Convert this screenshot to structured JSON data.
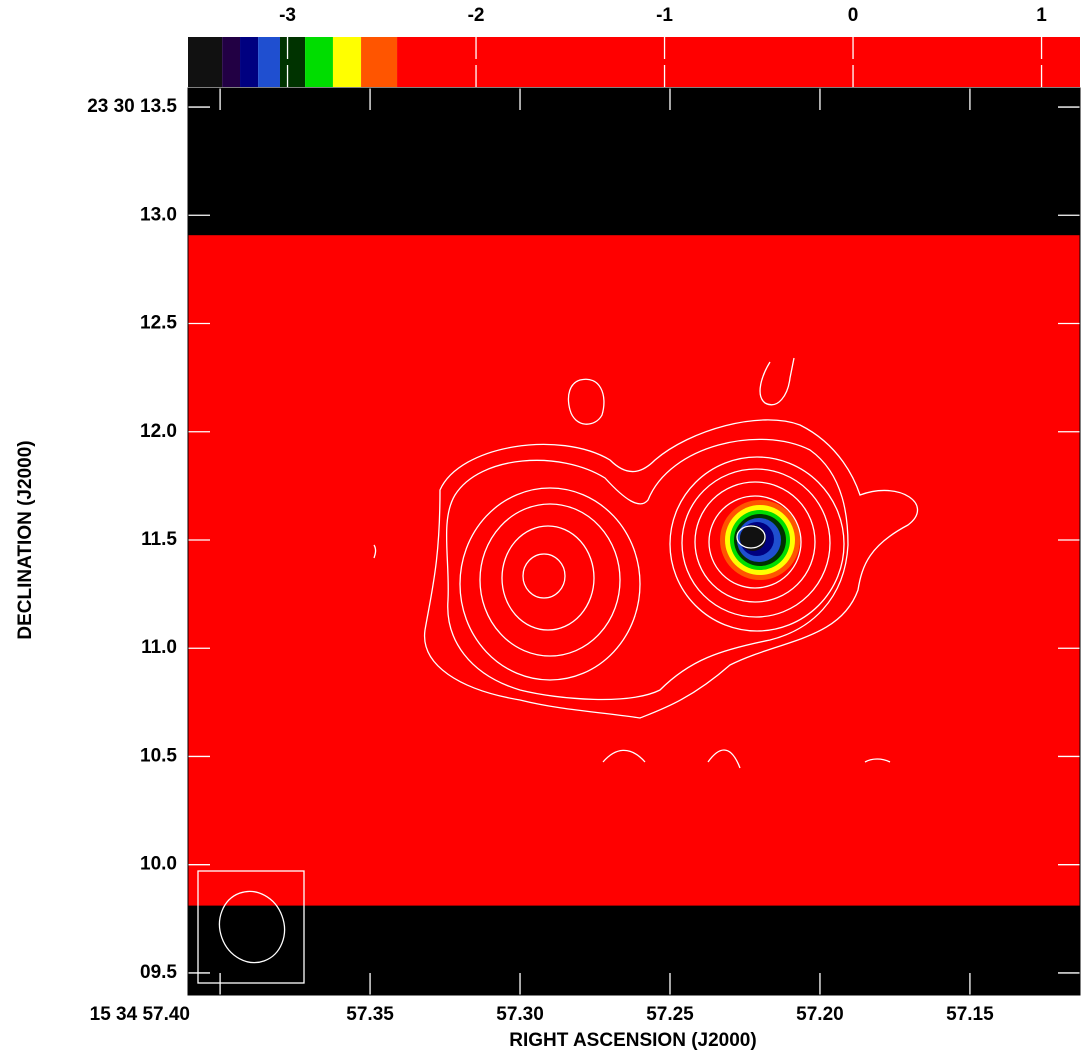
{
  "chart_data": {
    "type": "image",
    "x_label": "RIGHT ASCENSION (J2000)",
    "y_label": "DECLINATION (J2000)",
    "xlim": [
      57.4107,
      57.1133
    ],
    "ylim": [
      9.398,
      13.588
    ],
    "xticks": [
      {
        "value": 57.4,
        "label": "15 34 57.40"
      },
      57.35,
      {
        "value": 57.3,
        "label": "57.30"
      },
      57.25,
      {
        "value": 57.2,
        "label": "57.20"
      },
      57.15
    ],
    "yticks": [
      {
        "value": 9.5,
        "label": "09.5"
      },
      {
        "value": 10.0,
        "label": "10.0"
      },
      10.5,
      {
        "value": 11.0,
        "label": "11.0"
      },
      11.5,
      {
        "value": 12.0,
        "label": "12.0"
      },
      12.5,
      {
        "value": 13.0,
        "label": "13.0"
      },
      {
        "value": 13.5,
        "label": "23 30 13.5"
      }
    ],
    "background_color": "#000000",
    "data_extent": {
      "x": [
        57.4107,
        57.1133
      ],
      "y": [
        9.811,
        12.908
      ],
      "color": "#ff0000"
    },
    "colorbar": {
      "lim": [
        -3.528,
        1.204
      ],
      "ticks": [
        -3,
        -2,
        -1,
        0,
        1
      ],
      "bins": [
        -3.528,
        -3.347,
        -3.252,
        -3.156,
        -3.04,
        -2.907,
        -2.759,
        -2.61,
        -2.419,
        1.204
      ],
      "colors": [
        "#111111",
        "#220044",
        "#000080",
        "#1f4fd0",
        "#003300",
        "#00dd00",
        "#ffff00",
        "#ff5500",
        "#ff0000"
      ]
    }
  }
}
